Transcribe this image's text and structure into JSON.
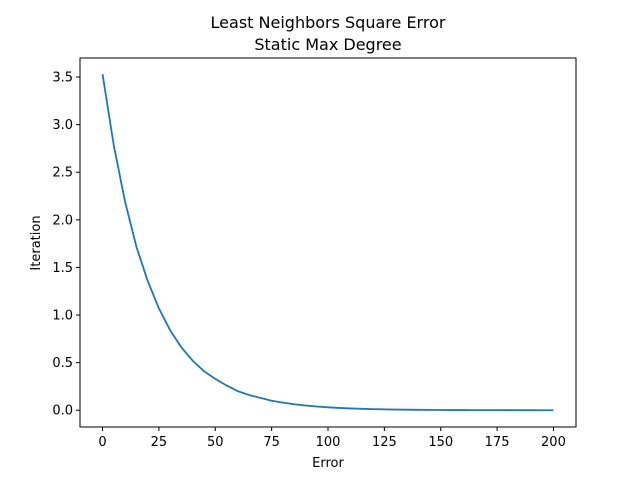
{
  "chart_data": {
    "type": "line",
    "title": "Least Neighbors Square Error",
    "subtitle": "Static Max Degree",
    "xlabel": "Error",
    "ylabel": "Iteration",
    "xlim": [
      -10,
      210
    ],
    "ylim": [
      -0.176,
      3.7
    ],
    "x_ticks": [
      0,
      25,
      50,
      75,
      100,
      125,
      150,
      175,
      200
    ],
    "x_tick_labels": [
      "0",
      "25",
      "50",
      "75",
      "100",
      "125",
      "150",
      "175",
      "200"
    ],
    "y_ticks": [
      0.0,
      0.5,
      1.0,
      1.5,
      2.0,
      2.5,
      3.0,
      3.5
    ],
    "y_tick_labels": [
      "0.0",
      "0.5",
      "1.0",
      "1.5",
      "2.0",
      "2.5",
      "3.0",
      "3.5"
    ],
    "grid": false,
    "series": [
      {
        "color": "#1f77b4",
        "x": [
          0,
          5,
          10,
          15,
          20,
          25,
          30,
          35,
          40,
          45,
          50,
          55,
          60,
          65,
          70,
          75,
          80,
          85,
          90,
          95,
          100,
          105,
          110,
          115,
          120,
          125,
          130,
          135,
          140,
          145,
          150,
          155,
          160,
          165,
          170,
          175,
          180,
          185,
          190,
          195,
          200
        ],
        "y": [
          3.53,
          2.78,
          2.19,
          1.72,
          1.36,
          1.07,
          0.84,
          0.66,
          0.52,
          0.41,
          0.33,
          0.26,
          0.2,
          0.16,
          0.13,
          0.1,
          0.08,
          0.063,
          0.05,
          0.039,
          0.031,
          0.024,
          0.019,
          0.015,
          0.012,
          0.0094,
          0.0074,
          0.0058,
          0.0046,
          0.0036,
          0.0028,
          0.0022,
          0.0018,
          0.0014,
          0.0011,
          0.0009,
          0.0007,
          0.0005,
          0.0004,
          0.0003,
          0.0003
        ]
      }
    ]
  }
}
